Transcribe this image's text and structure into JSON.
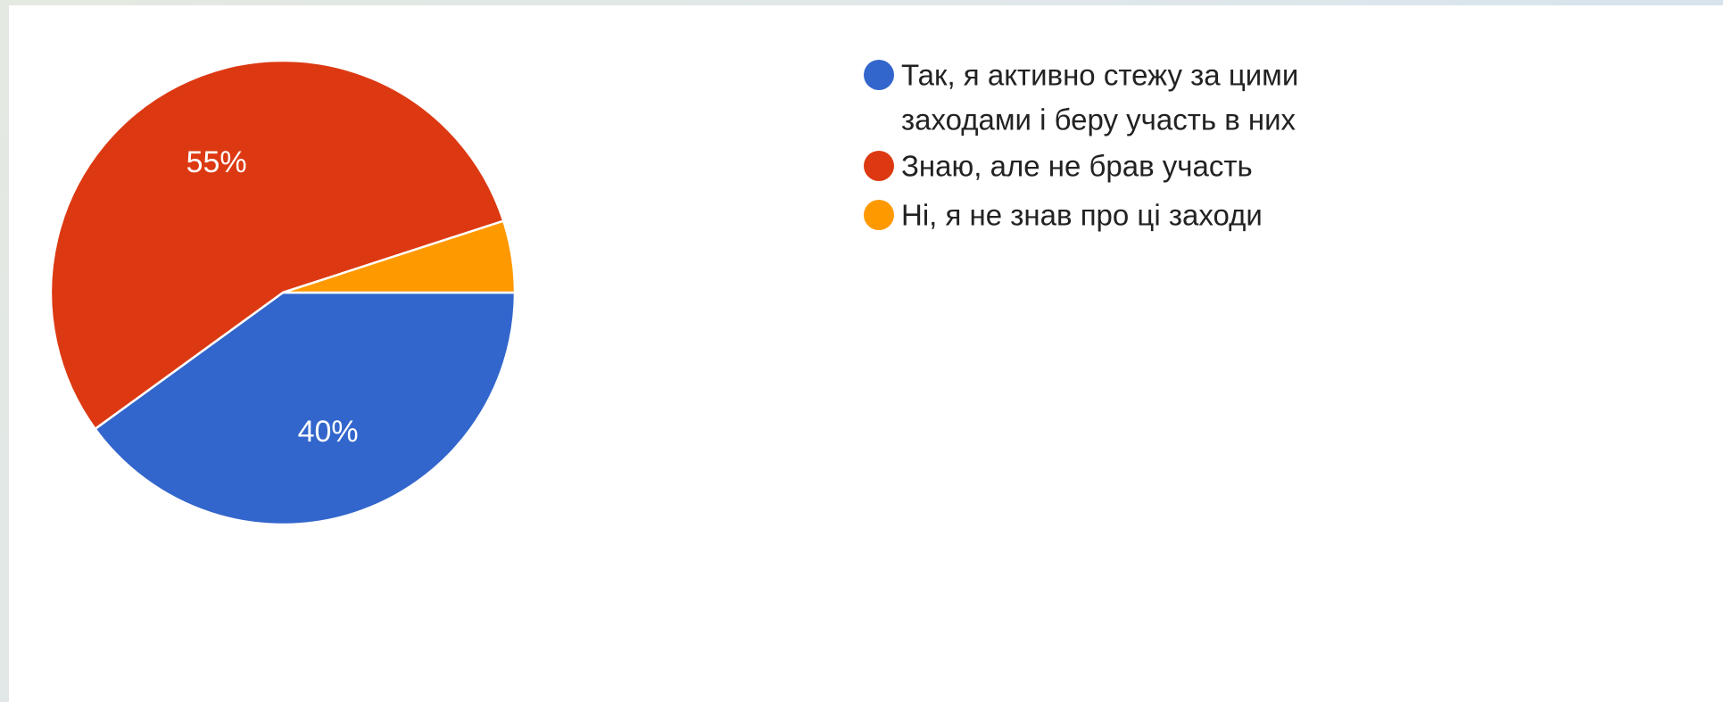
{
  "chart_data": {
    "type": "pie",
    "slices": [
      {
        "label": "Так, я активно стежу за цими заходами і беру участь в них",
        "legend_lines": [
          "Так, я активно стежу за цими",
          "заходами і беру участь в них"
        ],
        "value": 40,
        "value_label": "40%",
        "color": "#3366cc"
      },
      {
        "label": "Знаю, але не брав участь",
        "legend_lines": [
          "Знаю, але не брав участь"
        ],
        "value": 55,
        "value_label": "55%",
        "color": "#dc3912"
      },
      {
        "label": "Ні, я не знав про ці заходи",
        "legend_lines": [
          "Ні, я не знав про ці заходи"
        ],
        "value": 5,
        "value_label": "",
        "color": "#ff9900"
      }
    ],
    "legend_position": "right"
  }
}
